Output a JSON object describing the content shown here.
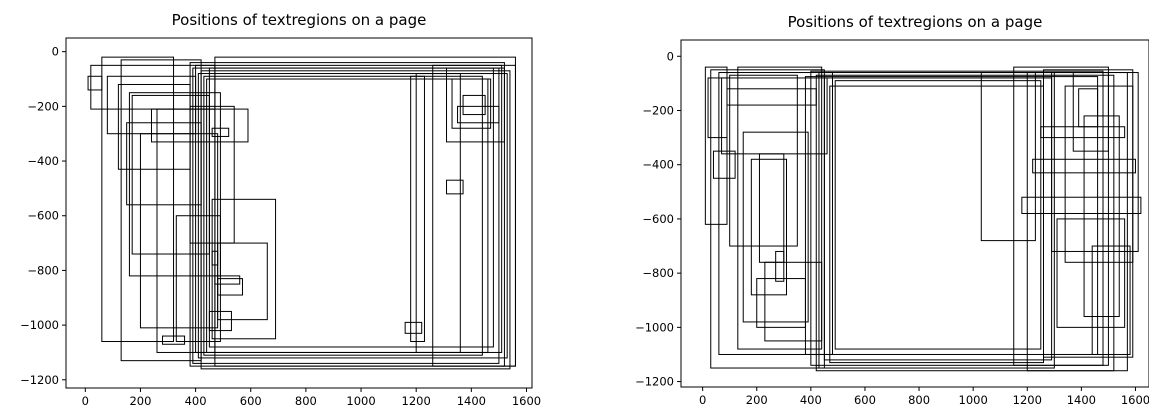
{
  "chart_data": [
    {
      "type": "rectangles",
      "title": "Positions of textregions on a page",
      "xlabel": "",
      "ylabel": "",
      "xlim": [
        -70,
        1620
      ],
      "ylim": [
        -1230,
        50
      ],
      "xticks": [
        0,
        200,
        400,
        600,
        800,
        1000,
        1200,
        1400,
        1600
      ],
      "yticks": [
        0,
        -200,
        -400,
        -600,
        -800,
        -1000,
        -1200
      ],
      "rects": [
        [
          20,
          -210,
          470,
          -50
        ],
        [
          60,
          -1060,
          320,
          -20
        ],
        [
          80,
          -300,
          400,
          -90
        ],
        [
          120,
          -430,
          380,
          -120
        ],
        [
          130,
          -1130,
          420,
          -30
        ],
        [
          160,
          -820,
          490,
          -150
        ],
        [
          170,
          -740,
          450,
          -160
        ],
        [
          200,
          -1010,
          480,
          -300
        ],
        [
          260,
          -1100,
          470,
          -210
        ],
        [
          330,
          -1060,
          490,
          -600
        ],
        [
          150,
          -560,
          420,
          -260
        ],
        [
          240,
          -330,
          590,
          -210
        ],
        [
          380,
          -700,
          540,
          -200
        ],
        [
          460,
          -310,
          520,
          -280
        ],
        [
          460,
          -1050,
          690,
          -540
        ],
        [
          480,
          -980,
          660,
          -700
        ],
        [
          470,
          -1150,
          1560,
          -20
        ],
        [
          400,
          -1100,
          1510,
          -50
        ],
        [
          420,
          -1160,
          1540,
          -70
        ],
        [
          390,
          -1140,
          1500,
          -60
        ],
        [
          410,
          -1120,
          1530,
          -80
        ],
        [
          380,
          -1150,
          1520,
          -40
        ],
        [
          1180,
          -1060,
          1230,
          -90
        ],
        [
          1200,
          -1100,
          1360,
          -80
        ],
        [
          1260,
          -1150,
          1560,
          -50
        ],
        [
          1310,
          -520,
          1370,
          -470
        ],
        [
          1160,
          -1030,
          1220,
          -990
        ],
        [
          1310,
          -330,
          1520,
          -60
        ],
        [
          1330,
          -280,
          1470,
          -100
        ],
        [
          1350,
          -260,
          1500,
          -200
        ],
        [
          1370,
          -230,
          1450,
          -160
        ],
        [
          480,
          -890,
          570,
          -830
        ],
        [
          470,
          -850,
          560,
          -820
        ],
        [
          460,
          -780,
          480,
          -730
        ],
        [
          450,
          -1020,
          530,
          -950
        ],
        [
          280,
          -1070,
          360,
          -1040
        ],
        [
          10,
          -140,
          60,
          -90
        ],
        [
          440,
          -1100,
          1460,
          -100
        ],
        [
          450,
          -1080,
          1480,
          -60
        ],
        [
          430,
          -1110,
          1440,
          -90
        ]
      ]
    },
    {
      "type": "rectangles",
      "title": "Positions of textregions on a page",
      "xlabel": "",
      "ylabel": "",
      "xlim": [
        -80,
        1650
      ],
      "ylim": [
        -1220,
        60
      ],
      "xticks": [
        0,
        200,
        400,
        600,
        800,
        1000,
        1200,
        1400,
        1600
      ],
      "yticks": [
        0,
        -200,
        -400,
        -600,
        -800,
        -1000,
        -1200
      ],
      "rects": [
        [
          10,
          -620,
          90,
          -40
        ],
        [
          30,
          -1150,
          450,
          -50
        ],
        [
          60,
          -1100,
          480,
          -60
        ],
        [
          100,
          -700,
          350,
          -70
        ],
        [
          130,
          -1080,
          440,
          -40
        ],
        [
          150,
          -980,
          390,
          -280
        ],
        [
          180,
          -880,
          310,
          -380
        ],
        [
          210,
          -760,
          300,
          -360
        ],
        [
          230,
          -1050,
          440,
          -760
        ],
        [
          270,
          -830,
          300,
          -720
        ],
        [
          200,
          -1000,
          380,
          -820
        ],
        [
          450,
          -1120,
          1290,
          -80
        ],
        [
          470,
          -1130,
          1260,
          -110
        ],
        [
          430,
          -1150,
          1300,
          -60
        ],
        [
          490,
          -1080,
          1250,
          -90
        ],
        [
          1030,
          -680,
          1230,
          -60
        ],
        [
          1150,
          -1140,
          1500,
          -40
        ],
        [
          1200,
          -1160,
          1570,
          -60
        ],
        [
          1260,
          -1110,
          1590,
          -50
        ],
        [
          1290,
          -720,
          1610,
          -60
        ],
        [
          1310,
          -1000,
          1560,
          -600
        ],
        [
          1340,
          -760,
          1590,
          -110
        ],
        [
          1370,
          -350,
          1500,
          -60
        ],
        [
          1390,
          -260,
          1460,
          -120
        ],
        [
          1410,
          -960,
          1540,
          -220
        ],
        [
          1440,
          -1100,
          1580,
          -700
        ],
        [
          40,
          -450,
          120,
          -350
        ],
        [
          20,
          -300,
          90,
          -80
        ],
        [
          420,
          -1160,
          1520,
          -70
        ],
        [
          400,
          -1140,
          1480,
          -55
        ],
        [
          380,
          -1100,
          1460,
          -75
        ],
        [
          70,
          -360,
          460,
          -80
        ],
        [
          90,
          -180,
          420,
          -120
        ],
        [
          1180,
          -580,
          1620,
          -520
        ],
        [
          1220,
          -430,
          1600,
          -380
        ],
        [
          1250,
          -300,
          1560,
          -260
        ]
      ]
    }
  ]
}
